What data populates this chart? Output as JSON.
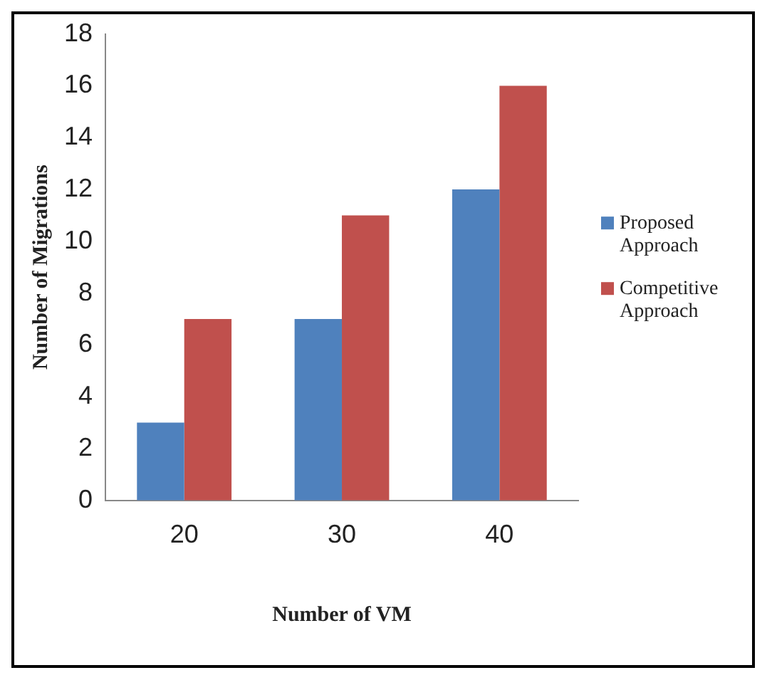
{
  "chart_data": {
    "type": "bar",
    "xlabel": "Number of VM",
    "ylabel": "Number of Migrations",
    "categories": [
      "20",
      "30",
      "40"
    ],
    "series": [
      {
        "name": "Proposed Approach",
        "color": "#4f81bd",
        "values": [
          3,
          7,
          12
        ]
      },
      {
        "name": "Competitive Approach",
        "color": "#c0504d",
        "values": [
          7,
          11,
          16
        ]
      }
    ],
    "ylim": [
      0,
      18
    ],
    "yticks": [
      0,
      2,
      4,
      6,
      8,
      10,
      12,
      14,
      16,
      18
    ],
    "grid": false,
    "legend": "right"
  }
}
